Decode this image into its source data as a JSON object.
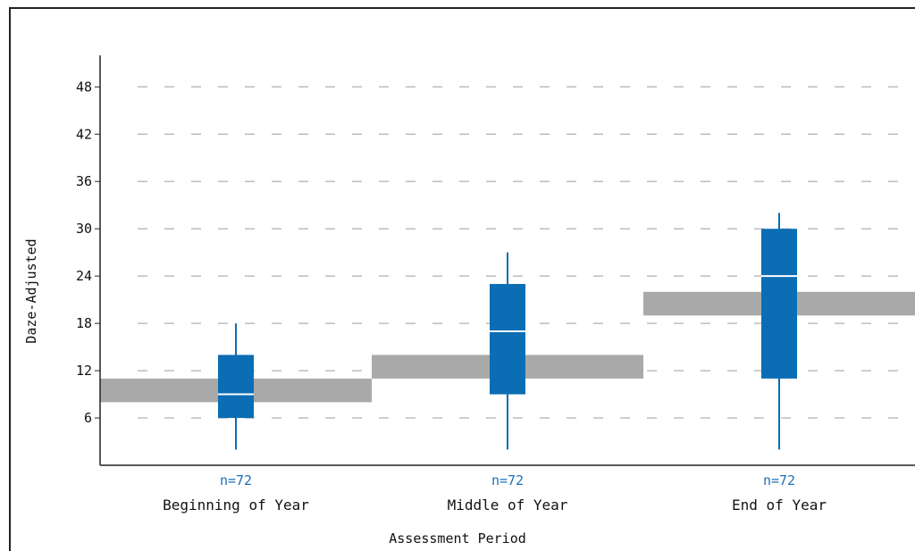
{
  "chart_data": {
    "type": "box",
    "title": "",
    "xlabel": "Assessment Period",
    "ylabel": "Daze-Adjusted",
    "ylim": [
      0,
      52
    ],
    "yticks": [
      6,
      12,
      18,
      24,
      30,
      36,
      42,
      48
    ],
    "grid": true,
    "categories": [
      "Beginning of Year",
      "Middle of Year",
      "End of Year"
    ],
    "n_labels": [
      "n=72",
      "n=72",
      "n=72"
    ],
    "boxes": [
      {
        "category": "Beginning of Year",
        "whisker_low": 2,
        "q1": 6,
        "median": 9,
        "q3": 14,
        "whisker_high": 18
      },
      {
        "category": "Middle of Year",
        "whisker_low": 2,
        "q1": 9,
        "median": 17,
        "q3": 23,
        "whisker_high": 27
      },
      {
        "category": "End of Year",
        "whisker_low": 2,
        "q1": 11,
        "median": 24,
        "q3": 30,
        "whisker_high": 32
      }
    ],
    "benchmark_bands": [
      {
        "category": "Beginning of Year",
        "low": 8,
        "high": 11
      },
      {
        "category": "Middle of Year",
        "low": 11,
        "high": 14
      },
      {
        "category": "End of Year",
        "low": 19,
        "high": 22
      }
    ],
    "colors": {
      "box": "#0b6db4",
      "median": "#ffffff",
      "band": "#a9a9a9",
      "grid": "#bdbdbd",
      "n_label": "#1f6fb5"
    }
  }
}
